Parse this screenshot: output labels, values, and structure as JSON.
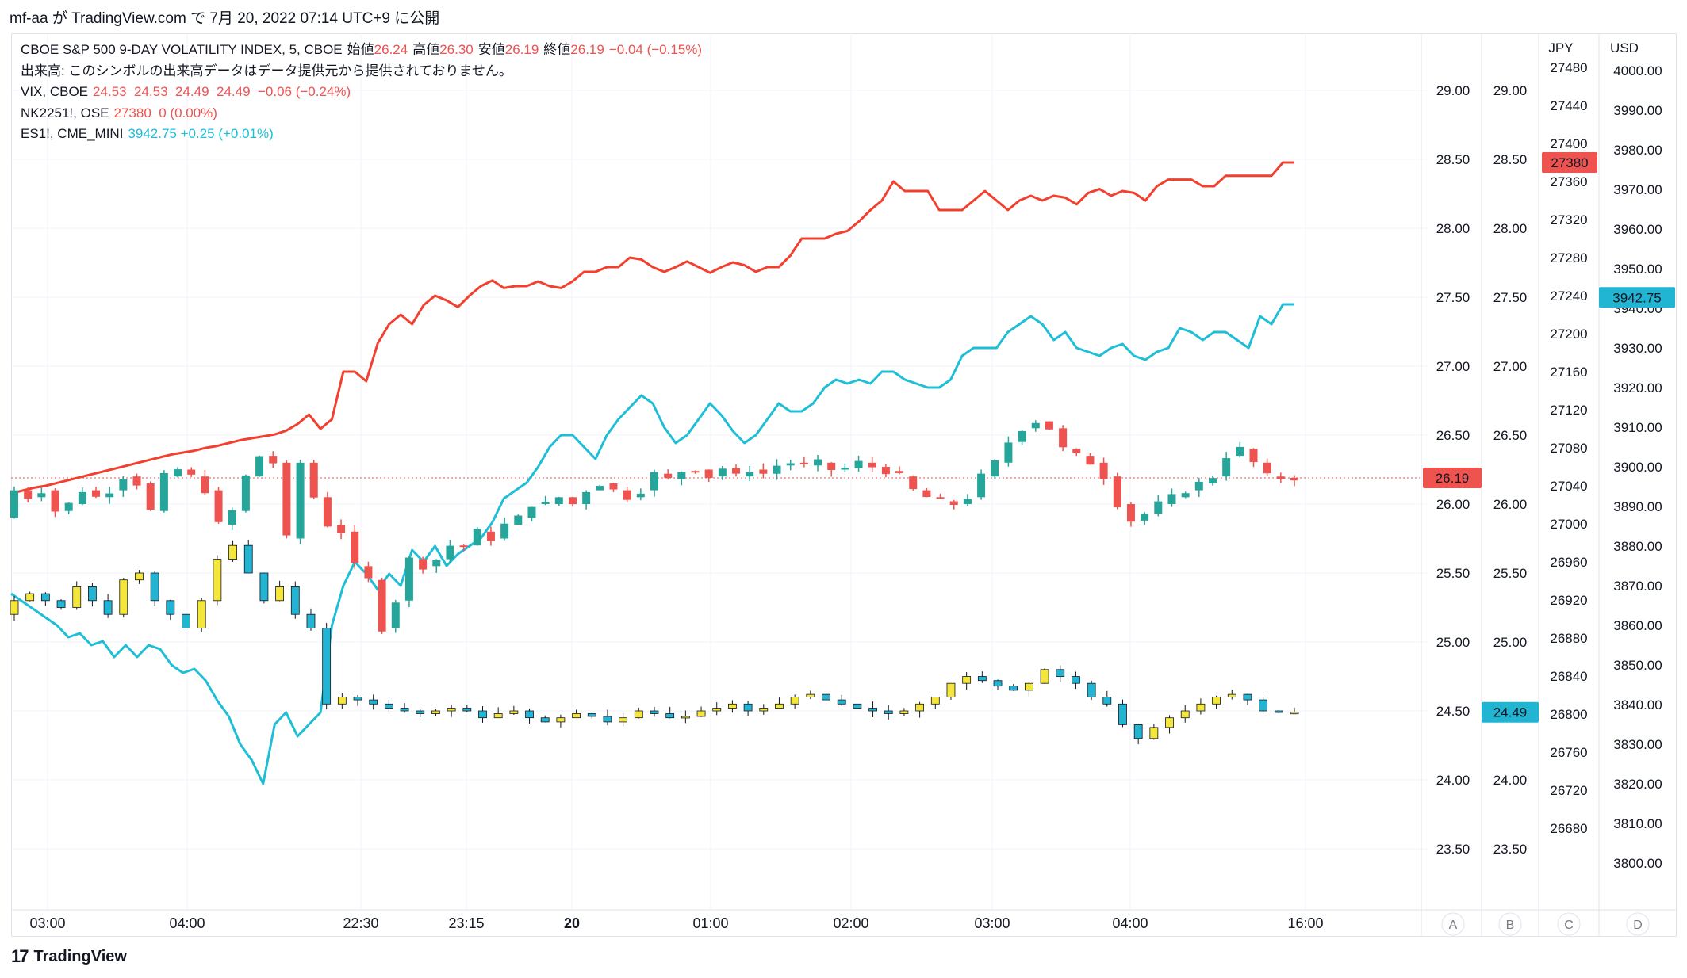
{
  "header": {
    "text": "mf-aa が TradingView.com で 7月 20, 2022 07:14 UTC+9 に公開"
  },
  "legend": {
    "main": {
      "name": "CBOE S&P 500 9-DAY VOLATILITY INDEX, 5, CBOE",
      "o_label": "始値",
      "o": "26.24",
      "h_label": "高値",
      "h": "26.30",
      "l_label": "安値",
      "l": "26.19",
      "c_label": "終値",
      "c": "26.19",
      "chg": "−0.04 (−0.15%)"
    },
    "volume_note": "出来高: このシンボルの出来高データはデータ提供元から提供されておりません。",
    "vix": {
      "name": "VIX, CBOE",
      "values": "24.53  24.53  24.49  24.49  −0.06 (−0.24%)"
    },
    "nk": {
      "name": "NK2251!, OSE",
      "values": "27380  0 (0.00%)"
    },
    "es": {
      "name": "ES1!, CME_MINI",
      "values": "3942.75  +0.25 (+0.01%)"
    }
  },
  "footer": {
    "brand": "TradingView",
    "logo": "17"
  },
  "colors": {
    "up": "#26a69a",
    "down": "#ef5350",
    "vix_up": "#f5e63b",
    "vix_down": "#22b5d3",
    "nk_line": "#f23f2e",
    "es_line": "#1ebfd6",
    "price_line": "#ef5350"
  },
  "chart_data": {
    "type": "line",
    "x_ticks": [
      "03:00",
      "04:00",
      "22:30",
      "23:15",
      "20",
      "01:00",
      "02:00",
      "03:00",
      "04:00",
      "16:00"
    ],
    "scale_labels": [
      "A",
      "B",
      "C",
      "D"
    ],
    "axes": {
      "A": {
        "ticks": [
          "29.00",
          "28.50",
          "28.00",
          "27.50",
          "27.00",
          "26.50",
          "26.00",
          "25.50",
          "25.00",
          "24.50",
          "24.00",
          "23.50"
        ],
        "last": "26.19"
      },
      "B": {
        "ticks": [
          "29.00",
          "28.50",
          "28.00",
          "27.50",
          "27.00",
          "26.50",
          "26.00",
          "25.50",
          "25.00",
          "24.50",
          "24.00",
          "23.50"
        ],
        "last": "24.49"
      },
      "C": {
        "unit": "JPY",
        "ticks": [
          "27480",
          "27440",
          "27400",
          "27360",
          "27320",
          "27280",
          "27240",
          "27200",
          "27160",
          "27120",
          "27080",
          "27040",
          "27000",
          "26960",
          "26920",
          "26880",
          "26840",
          "26800",
          "26760",
          "26720",
          "26680"
        ],
        "last": "27380"
      },
      "D": {
        "unit": "USD",
        "ticks": [
          "4000.00",
          "3990.00",
          "3980.00",
          "3970.00",
          "3960.00",
          "3950.00",
          "3940.00",
          "3930.00",
          "3920.00",
          "3910.00",
          "3900.00",
          "3890.00",
          "3880.00",
          "3870.00",
          "3860.00",
          "3850.00",
          "3840.00",
          "3830.00",
          "3820.00",
          "3810.00",
          "3800.00"
        ],
        "last": "3942.75"
      }
    },
    "series": [
      {
        "name": "NK2251!, OSE",
        "type": "line",
        "axis": "C",
        "values": [
          27032,
          27035,
          27038,
          27040,
          27043,
          27046,
          27049,
          27052,
          27055,
          27058,
          27061,
          27064,
          27067,
          27070,
          27073,
          27075,
          27077,
          27080,
          27082,
          27085,
          27088,
          27090,
          27092,
          27094,
          27098,
          27105,
          27115,
          27100,
          27110,
          27160,
          27160,
          27150,
          27190,
          27210,
          27220,
          27210,
          27230,
          27240,
          27235,
          27228,
          27240,
          27250,
          27256,
          27248,
          27250,
          27250,
          27255,
          27250,
          27248,
          27255,
          27265,
          27265,
          27270,
          27270,
          27280,
          27278,
          27270,
          27265,
          27270,
          27276,
          27270,
          27264,
          27270,
          27275,
          27272,
          27265,
          27270,
          27270,
          27282,
          27300,
          27300,
          27300,
          27305,
          27308,
          27318,
          27330,
          27340,
          27360,
          27350,
          27350,
          27350,
          27330,
          27330,
          27330,
          27340,
          27350,
          27340,
          27330,
          27340,
          27345,
          27340,
          27345,
          27343,
          27336,
          27348,
          27352,
          27345,
          27350,
          27348,
          27340,
          27355,
          27362,
          27362,
          27362,
          27355,
          27355,
          27366,
          27366,
          27366,
          27366,
          27366,
          27380,
          27380
        ]
      },
      {
        "name": "ES1!, CME_MINI",
        "type": "line",
        "axis": "D",
        "values": [
          3868,
          3866,
          3864,
          3862,
          3860,
          3857,
          3858,
          3855,
          3856,
          3852,
          3855,
          3852,
          3855,
          3854,
          3850,
          3848,
          3849,
          3846,
          3841,
          3837,
          3830,
          3826,
          3820,
          3835,
          3838,
          3832,
          3835,
          3838,
          3860,
          3870,
          3876,
          3873,
          3869,
          3873,
          3870,
          3879,
          3876,
          3880,
          3875,
          3878,
          3880,
          3882,
          3886,
          3892,
          3894,
          3896,
          3900,
          3905,
          3908,
          3908,
          3905,
          3902,
          3908,
          3912,
          3915,
          3918,
          3916,
          3910,
          3906,
          3908,
          3912,
          3916,
          3913,
          3909,
          3906,
          3908,
          3912,
          3916,
          3914,
          3914,
          3916,
          3920,
          3922,
          3921,
          3922,
          3921,
          3924,
          3924,
          3922,
          3921,
          3920,
          3920,
          3922,
          3928,
          3930,
          3930,
          3930,
          3934,
          3936,
          3938,
          3936,
          3932,
          3934,
          3930,
          3929,
          3928,
          3930,
          3931,
          3928,
          3927,
          3929,
          3930,
          3935,
          3934,
          3932,
          3934,
          3934,
          3932,
          3930,
          3938,
          3936,
          3941,
          3941
        ]
      },
      {
        "name": "CBOE S&P 500 9-DAY VOLATILITY INDEX, 5, CBOE",
        "type": "candlestick",
        "axis": "A",
        "last": "26.19"
      },
      {
        "name": "VIX, CBOE",
        "type": "candlestick",
        "axis": "B",
        "last": "24.49"
      }
    ]
  }
}
